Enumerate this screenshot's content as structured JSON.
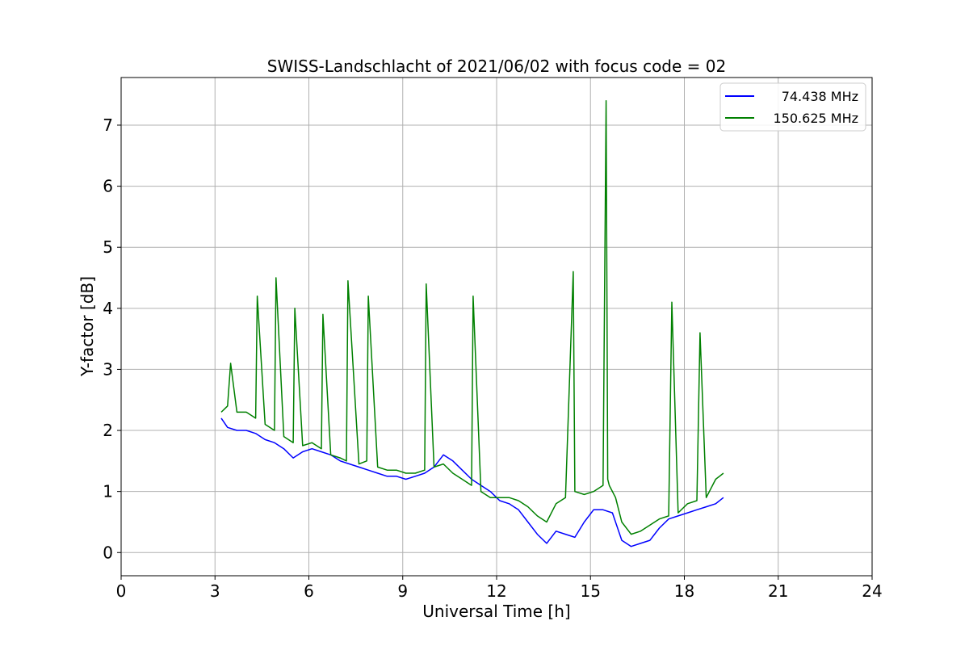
{
  "chart_data": {
    "type": "line",
    "title": "SWISS-Landschlacht of 2021/06/02 with focus code = 02",
    "xlabel": "Universal Time [h]",
    "ylabel": "Y-factor [dB]",
    "xlim": [
      0,
      24
    ],
    "ylim": [
      -0.38,
      7.78
    ],
    "xticks": [
      0,
      3,
      6,
      9,
      12,
      15,
      18,
      21,
      24
    ],
    "yticks": [
      0,
      1,
      2,
      3,
      4,
      5,
      6,
      7
    ],
    "grid": true,
    "legend_position": "top-right",
    "series": [
      {
        "name": "74.438 MHz",
        "color": "#0000ff",
        "x": [
          3.2,
          3.4,
          3.7,
          4.0,
          4.3,
          4.6,
          4.9,
          5.2,
          5.5,
          5.8,
          6.1,
          6.4,
          6.7,
          7.0,
          7.3,
          7.6,
          7.9,
          8.2,
          8.5,
          8.8,
          9.1,
          9.4,
          9.7,
          10.0,
          10.3,
          10.6,
          10.9,
          11.2,
          11.5,
          11.8,
          12.1,
          12.4,
          12.7,
          13.0,
          13.3,
          13.6,
          13.9,
          14.2,
          14.5,
          14.8,
          15.1,
          15.4,
          15.7,
          16.0,
          16.3,
          16.6,
          16.9,
          17.2,
          17.5,
          17.8,
          18.1,
          18.4,
          18.7,
          19.0,
          19.25
        ],
        "y": [
          2.2,
          2.05,
          2.0,
          2.0,
          1.95,
          1.85,
          1.8,
          1.7,
          1.55,
          1.65,
          1.7,
          1.65,
          1.6,
          1.5,
          1.45,
          1.4,
          1.35,
          1.3,
          1.25,
          1.25,
          1.2,
          1.25,
          1.3,
          1.4,
          1.6,
          1.5,
          1.35,
          1.2,
          1.1,
          1.0,
          0.85,
          0.8,
          0.7,
          0.5,
          0.3,
          0.15,
          0.35,
          0.3,
          0.25,
          0.5,
          0.7,
          0.7,
          0.65,
          0.2,
          0.1,
          0.15,
          0.2,
          0.4,
          0.55,
          0.6,
          0.65,
          0.7,
          0.75,
          0.8,
          0.9
        ]
      },
      {
        "name": "150.625 MHz",
        "color": "#008000",
        "x": [
          3.2,
          3.4,
          3.5,
          3.7,
          4.0,
          4.3,
          4.35,
          4.6,
          4.9,
          4.95,
          5.2,
          5.5,
          5.55,
          5.8,
          6.1,
          6.4,
          6.45,
          6.7,
          7.0,
          7.2,
          7.25,
          7.6,
          7.85,
          7.9,
          8.2,
          8.5,
          8.8,
          9.1,
          9.4,
          9.7,
          9.75,
          10.0,
          10.3,
          10.6,
          10.9,
          11.2,
          11.25,
          11.5,
          11.8,
          12.1,
          12.4,
          12.7,
          13.0,
          13.3,
          13.6,
          13.9,
          14.2,
          14.45,
          14.5,
          14.8,
          15.1,
          15.4,
          15.5,
          15.55,
          15.6,
          15.8,
          16.0,
          16.3,
          16.6,
          16.9,
          17.2,
          17.5,
          17.6,
          17.8,
          18.1,
          18.4,
          18.5,
          18.7,
          19.0,
          19.25
        ],
        "y": [
          2.3,
          2.4,
          3.1,
          2.3,
          2.3,
          2.2,
          4.2,
          2.1,
          2.0,
          4.5,
          1.9,
          1.8,
          4.0,
          1.75,
          1.8,
          1.7,
          3.9,
          1.6,
          1.55,
          1.5,
          4.45,
          1.45,
          1.5,
          4.2,
          1.4,
          1.35,
          1.35,
          1.3,
          1.3,
          1.35,
          4.4,
          1.4,
          1.45,
          1.3,
          1.2,
          1.1,
          4.2,
          1.0,
          0.9,
          0.9,
          0.9,
          0.85,
          0.75,
          0.6,
          0.5,
          0.8,
          0.9,
          4.6,
          1.0,
          0.95,
          1.0,
          1.1,
          7.4,
          1.2,
          1.1,
          0.9,
          0.5,
          0.3,
          0.35,
          0.45,
          0.55,
          0.6,
          4.1,
          0.65,
          0.8,
          0.85,
          3.6,
          0.9,
          1.2,
          1.3
        ]
      }
    ]
  }
}
